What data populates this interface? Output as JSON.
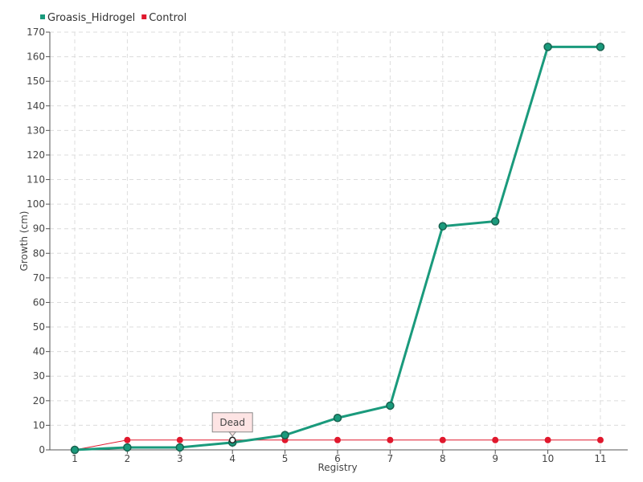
{
  "chart_data": {
    "type": "line",
    "xlabel": "Registry",
    "ylabel": "Growth (cm)",
    "categories": [
      "1",
      "2",
      "3",
      "4",
      "5",
      "6",
      "7",
      "8",
      "9",
      "10",
      "11"
    ],
    "ylim": [
      0,
      170
    ],
    "yticks": [
      0,
      10,
      20,
      30,
      40,
      50,
      60,
      70,
      80,
      90,
      100,
      110,
      120,
      130,
      140,
      150,
      160,
      170
    ],
    "grid": true,
    "legend_position": "top-left",
    "series": [
      {
        "name": "Groasis_Hidrogel",
        "color": "#1a9a7c",
        "values": [
          0,
          1,
          1,
          3,
          6,
          13,
          18,
          91,
          93,
          164,
          164
        ]
      },
      {
        "name": "Control",
        "color": "#e0182d",
        "values": [
          0,
          4,
          4,
          4,
          4,
          4,
          4,
          4,
          4,
          4,
          4
        ]
      }
    ],
    "annotations": [
      {
        "text": "Dead",
        "series": "Control",
        "category": "4"
      }
    ]
  }
}
